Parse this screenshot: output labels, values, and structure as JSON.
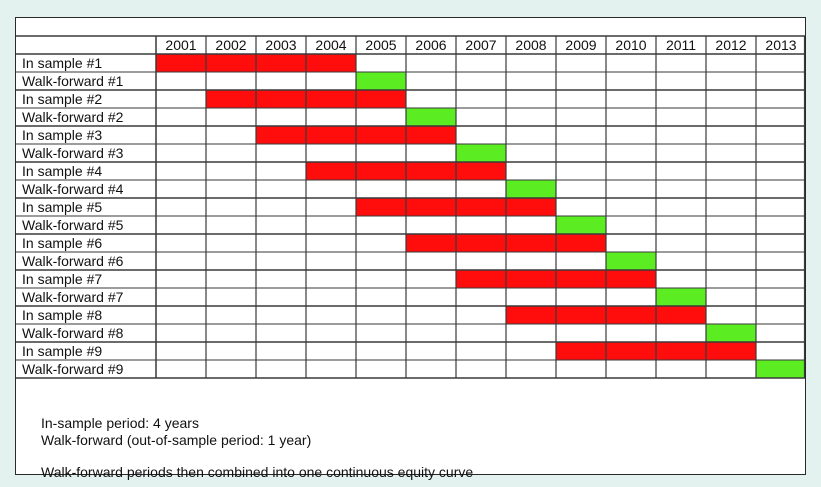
{
  "years": [
    "2001",
    "2002",
    "2003",
    "2004",
    "2005",
    "2006",
    "2007",
    "2008",
    "2009",
    "2010",
    "2011",
    "2012",
    "2013"
  ],
  "colors": {
    "in_sample": "#ff0c0c",
    "walk_forward": "#5cec22",
    "grid": "#3a3a3a",
    "background": "#e4f2ef"
  },
  "rows": [
    {
      "label": "In sample #1",
      "kind": "in_sample",
      "start": 2001,
      "end": 2004
    },
    {
      "label": "Walk-forward #1",
      "kind": "walk_forward",
      "start": 2005,
      "end": 2005
    },
    {
      "label": "In sample #2",
      "kind": "in_sample",
      "start": 2002,
      "end": 2005
    },
    {
      "label": "Walk-forward #2",
      "kind": "walk_forward",
      "start": 2006,
      "end": 2006
    },
    {
      "label": "In sample #3",
      "kind": "in_sample",
      "start": 2003,
      "end": 2006
    },
    {
      "label": "Walk-forward #3",
      "kind": "walk_forward",
      "start": 2007,
      "end": 2007
    },
    {
      "label": "In sample #4",
      "kind": "in_sample",
      "start": 2004,
      "end": 2007
    },
    {
      "label": "Walk-forward #4",
      "kind": "walk_forward",
      "start": 2008,
      "end": 2008
    },
    {
      "label": "In sample #5",
      "kind": "in_sample",
      "start": 2005,
      "end": 2008
    },
    {
      "label": "Walk-forward #5",
      "kind": "walk_forward",
      "start": 2009,
      "end": 2009
    },
    {
      "label": "In sample #6",
      "kind": "in_sample",
      "start": 2006,
      "end": 2009
    },
    {
      "label": "Walk-forward #6",
      "kind": "walk_forward",
      "start": 2010,
      "end": 2010
    },
    {
      "label": "In sample #7",
      "kind": "in_sample",
      "start": 2007,
      "end": 2010
    },
    {
      "label": "Walk-forward #7",
      "kind": "walk_forward",
      "start": 2011,
      "end": 2011
    },
    {
      "label": "In sample #8",
      "kind": "in_sample",
      "start": 2008,
      "end": 2011
    },
    {
      "label": "Walk-forward #8",
      "kind": "walk_forward",
      "start": 2012,
      "end": 2012
    },
    {
      "label": "In sample #9",
      "kind": "in_sample",
      "start": 2009,
      "end": 2012
    },
    {
      "label": "Walk-forward #9",
      "kind": "walk_forward",
      "start": 2013,
      "end": 2013
    }
  ],
  "notes": {
    "line1": "In-sample period: 4 years",
    "line2": "Walk-forward (out-of-sample period: 1 year)",
    "line3": "Walk-forward periods then combined into one continuous equity curve"
  }
}
